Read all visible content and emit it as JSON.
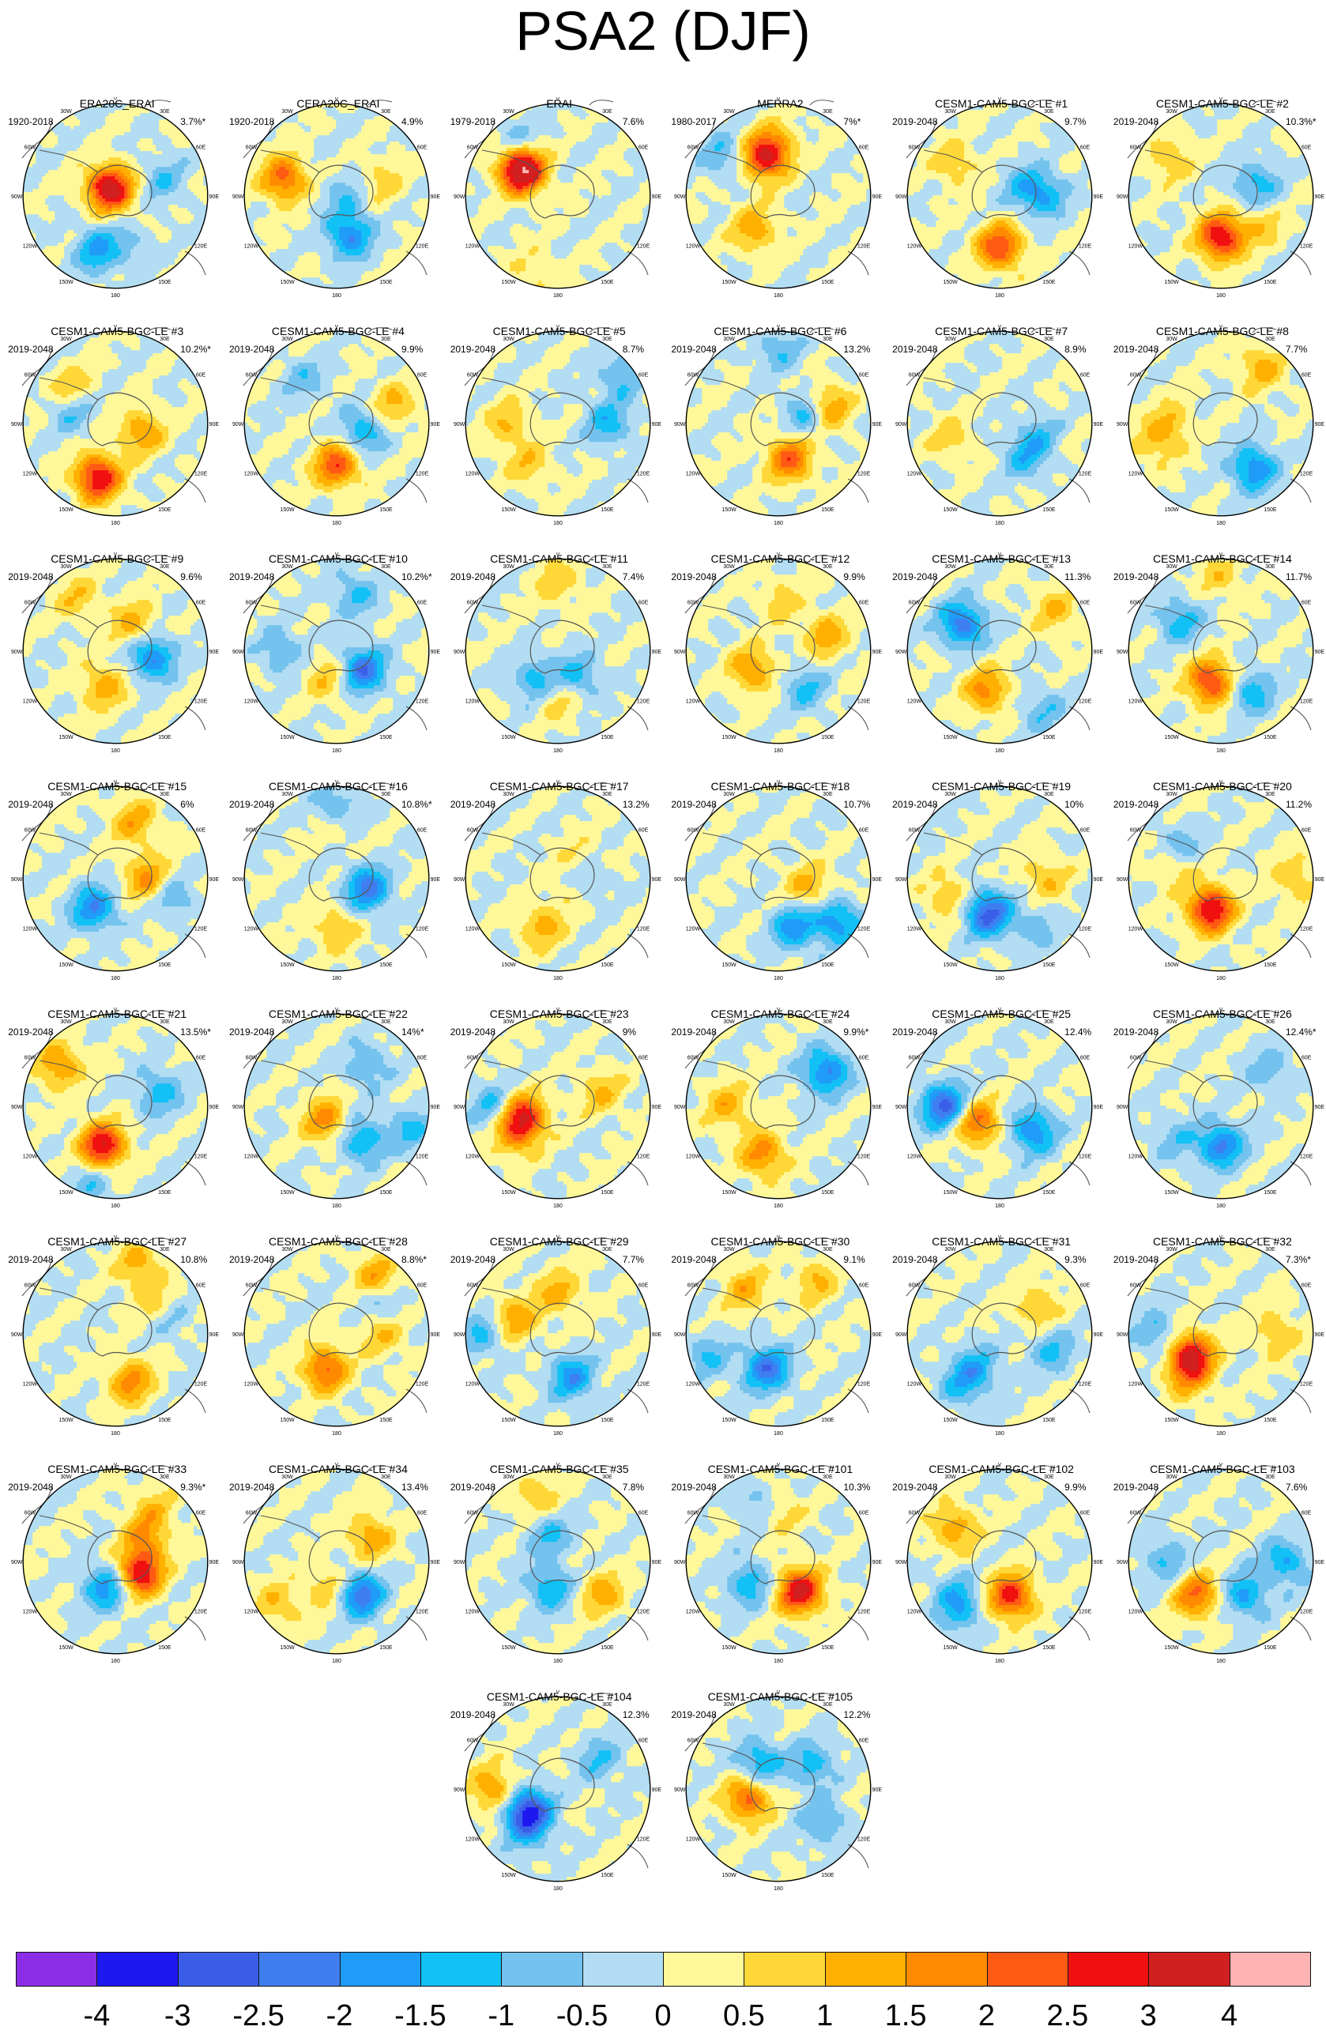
{
  "title": "PSA2 (DJF)",
  "map_labels": {
    "lon_0": "0",
    "lon_30w": "30W",
    "lon_30e": "30E",
    "lon_60w": "60W",
    "lon_60e": "60E",
    "lon_90w": "90W",
    "lon_90e": "90E",
    "lon_120w": "120W",
    "lon_120e": "120E",
    "lon_150w": "150W",
    "lon_150e": "150E",
    "lon_180": "180"
  },
  "panels": [
    {
      "name": "ERA20C_ERAI",
      "period": "1920-2018",
      "pct": "3.7%*",
      "pattern": [
        [
          -1.2,
          -0.1,
          3.5
        ],
        [
          0.9,
          0.55,
          -0.55
        ],
        [
          -0.9,
          0.62,
          -1.6
        ],
        [
          0.4,
          0.55,
          -0.9
        ]
      ]
    },
    {
      "name": "CERA20C_ERAI",
      "period": "1920-2018",
      "pct": "4.9%",
      "pattern": [
        [
          -1.5,
          0.1,
          -0.8
        ],
        [
          0.9,
          0.45,
          -2.0
        ],
        [
          1.6,
          0.6,
          2.2
        ],
        [
          0.4,
          0.5,
          0.8
        ]
      ]
    },
    {
      "name": "ERAI",
      "period": "1979-2018",
      "pct": "7.6%",
      "pattern": [
        [
          1.7,
          0.5,
          2.6
        ],
        [
          1.7,
          0.45,
          1.6
        ],
        [
          -0.2,
          0.75,
          -0.9
        ],
        [
          1.1,
          0.85,
          0.6
        ]
      ]
    },
    {
      "name": "MERRA2",
      "period": "1980-2017",
      "pct": "7%*",
      "pattern": [
        [
          1.9,
          0.45,
          3.0
        ],
        [
          1.2,
          0.45,
          1.4
        ],
        [
          -0.3,
          0.75,
          -1.0
        ],
        [
          0.0,
          0.6,
          0.6
        ]
      ]
    },
    {
      "name": "CESM1-CAM5-BGC-LE #1",
      "period": "2019-2048",
      "pct": "9.7%",
      "pattern": [
        [
          -1.0,
          0.55,
          2.5
        ],
        [
          -1.5,
          0.5,
          -1.2
        ],
        [
          2.4,
          0.3,
          -1.1
        ],
        [
          -0.3,
          0.6,
          0.9
        ]
      ]
    },
    {
      "name": "CESM1-CAM5-BGC-LE #2",
      "period": "2019-2048",
      "pct": "10.3%*",
      "pattern": [
        [
          -1.0,
          0.45,
          3.1
        ],
        [
          -1.6,
          0.4,
          -1.3
        ],
        [
          -0.3,
          0.7,
          1.0
        ],
        [
          0.7,
          0.55,
          0.8
        ]
      ]
    },
    {
      "name": "CESM1-CAM5-BGC-LE #3",
      "period": "2019-2048",
      "pct": "10.2%*",
      "pattern": [
        [
          -0.9,
          0.62,
          3.1
        ],
        [
          0.6,
          0.3,
          1.5
        ],
        [
          -0.4,
          0.5,
          -1.2
        ],
        [
          -2.3,
          0.6,
          1.2
        ]
      ]
    },
    {
      "name": "CESM1-CAM5-BGC-LE #4",
      "period": "2019-2048",
      "pct": "9.9%",
      "pattern": [
        [
          -1.0,
          0.45,
          2.4
        ],
        [
          -1.4,
          0.3,
          -1.5
        ],
        [
          0.4,
          0.65,
          1.1
        ],
        [
          -0.2,
          0.6,
          -0.8
        ]
      ]
    },
    {
      "name": "CESM1-CAM5-BGC-LE #5",
      "period": "2019-2048",
      "pct": "8.7%",
      "pattern": [
        [
          -0.5,
          0.55,
          1.0
        ],
        [
          -1.5,
          0.55,
          -1.3
        ],
        [
          1.2,
          0.55,
          0.9
        ],
        [
          0.3,
          0.85,
          -1.0
        ]
      ]
    },
    {
      "name": "CESM1-CAM5-BGC-LE #6",
      "period": "2019-2048",
      "pct": "13.2%",
      "pattern": [
        [
          -1.1,
          0.4,
          2.2
        ],
        [
          -1.6,
          0.35,
          -1.6
        ],
        [
          0.4,
          0.55,
          1.9
        ],
        [
          0.0,
          0.8,
          -0.9
        ]
      ]
    },
    {
      "name": "CESM1-CAM5-BGC-LE #7",
      "period": "2019-2048",
      "pct": "8.9%",
      "pattern": [
        [
          -1.2,
          0.45,
          -1.1
        ],
        [
          0.6,
          0.5,
          -1.4
        ],
        [
          1.4,
          0.55,
          0.8
        ],
        [
          2.6,
          0.6,
          0.6
        ]
      ]
    },
    {
      "name": "CESM1-CAM5-BGC-LE #8",
      "period": "2019-2048",
      "pct": "7.7%",
      "pattern": [
        [
          -1.2,
          0.6,
          -2.0
        ],
        [
          1.5,
          0.55,
          1.0
        ],
        [
          0.2,
          0.75,
          1.2
        ],
        [
          -0.6,
          0.75,
          0.8
        ]
      ]
    },
    {
      "name": "CESM1-CAM5-BGC-LE #9",
      "period": "2019-2048",
      "pct": "9.6%",
      "pattern": [
        [
          -1.45,
          0.4,
          -2.1
        ],
        [
          -0.9,
          0.4,
          1.3
        ],
        [
          0.2,
          0.35,
          1.3
        ],
        [
          -0.2,
          0.7,
          0.9
        ]
      ]
    },
    {
      "name": "CESM1-CAM5-BGC-LE #10",
      "period": "2019-2048",
      "pct": "10.2%*",
      "pattern": [
        [
          -1.3,
          0.35,
          -2.4
        ],
        [
          -0.9,
          0.3,
          1.0
        ],
        [
          0.1,
          0.65,
          -1.1
        ],
        [
          1.5,
          0.6,
          -1.0
        ]
      ]
    },
    {
      "name": "CESM1-CAM5-BGC-LE #11",
      "period": "2019-2048",
      "pct": "7.4%",
      "pattern": [
        [
          -1.0,
          0.5,
          1.0
        ],
        [
          -1.2,
          0.35,
          -1.3
        ],
        [
          1.2,
          0.4,
          -1.4
        ],
        [
          0.0,
          0.75,
          0.9
        ]
      ]
    },
    {
      "name": "CESM1-CAM5-BGC-LE #12",
      "period": "2019-2048",
      "pct": "9.9%",
      "pattern": [
        [
          -1.2,
          0.5,
          -1.1
        ],
        [
          -0.7,
          0.35,
          1.6
        ],
        [
          0.4,
          0.55,
          1.3
        ],
        [
          2.0,
          0.55,
          0.7
        ]
      ]
    },
    {
      "name": "CESM1-CAM5-BGC-LE #13",
      "period": "2019-2048",
      "pct": "11.3%",
      "pattern": [
        [
          -0.9,
          0.45,
          1.7
        ],
        [
          -0.3,
          0.5,
          -2.3
        ],
        [
          2.3,
          0.75,
          1.0
        ],
        [
          0.8,
          0.8,
          -0.9
        ]
      ]
    },
    {
      "name": "CESM1-CAM5-BGC-LE #14",
      "period": "2019-2048",
      "pct": "11.7%",
      "pattern": [
        [
          -0.9,
          0.35,
          2.7
        ],
        [
          -0.3,
          0.55,
          -1.3
        ],
        [
          0.8,
          0.55,
          -1.4
        ],
        [
          0.0,
          0.8,
          0.8
        ]
      ]
    },
    {
      "name": "CESM1-CAM5-BGC-LE #15",
      "period": "2019-2048",
      "pct": "6%",
      "pattern": [
        [
          -1.5,
          0.35,
          1.6
        ],
        [
          -0.8,
          0.4,
          -2.0
        ],
        [
          0.1,
          0.65,
          1.3
        ],
        [
          0.6,
          0.65,
          -1.0
        ]
      ]
    },
    {
      "name": "CESM1-CAM5-BGC-LE #16",
      "period": "2019-2048",
      "pct": "10.8%*",
      "pattern": [
        [
          -1.4,
          0.35,
          -2.2
        ],
        [
          0.0,
          0.75,
          -1.3
        ],
        [
          1.0,
          0.55,
          1.0
        ],
        [
          2.0,
          0.6,
          0.7
        ]
      ]
    },
    {
      "name": "CESM1-CAM5-BGC-LE #17",
      "period": "2019-2048",
      "pct": "13.2%",
      "pattern": [
        [
          -1.5,
          0.25,
          -2.3
        ],
        [
          0.6,
          0.2,
          1.6
        ],
        [
          -0.9,
          0.55,
          1.2
        ],
        [
          0.3,
          0.3,
          1.0
        ]
      ]
    },
    {
      "name": "CESM1-CAM5-BGC-LE #18",
      "period": "2019-2048",
      "pct": "10.7%",
      "pattern": [
        [
          -1.1,
          0.55,
          -1.8
        ],
        [
          -1.4,
          0.35,
          1.3
        ],
        [
          0.7,
          0.7,
          -1.0
        ],
        [
          2.7,
          0.85,
          -1.0
        ]
      ]
    },
    {
      "name": "CESM1-CAM5-BGC-LE #19",
      "period": "2019-2048",
      "pct": "10%",
      "pattern": [
        [
          -0.9,
          0.4,
          -2.7
        ],
        [
          -0.6,
          0.6,
          1.0
        ],
        [
          -1.5,
          0.5,
          1.0
        ],
        [
          0.8,
          0.65,
          -0.8
        ]
      ]
    },
    {
      "name": "CESM1-CAM5-BGC-LE #20",
      "period": "2019-2048",
      "pct": "11.2%",
      "pattern": [
        [
          -0.9,
          0.35,
          3.2
        ],
        [
          -0.3,
          0.55,
          -1.2
        ],
        [
          1.6,
          0.5,
          1.0
        ],
        [
          -1.5,
          0.8,
          1.0
        ]
      ]
    },
    {
      "name": "CESM1-CAM5-BGC-LE #21",
      "period": "2019-2048",
      "pct": "13.5%*",
      "pattern": [
        [
          -0.9,
          0.45,
          3.1
        ],
        [
          0.4,
          0.5,
          -1.3
        ],
        [
          1.7,
          0.75,
          1.6
        ],
        [
          -0.9,
          0.9,
          -0.9
        ]
      ]
    },
    {
      "name": "CESM1-CAM5-BGC-LE #22",
      "period": "2019-2048",
      "pct": "14%*",
      "pattern": [
        [
          -1.2,
          0.45,
          -1.6
        ],
        [
          -0.8,
          0.2,
          1.7
        ],
        [
          0.2,
          0.55,
          -1.0
        ],
        [
          2.6,
          0.85,
          -1.1
        ]
      ]
    },
    {
      "name": "CESM1-CAM5-BGC-LE #23",
      "period": "2019-2048",
      "pct": "9%",
      "pattern": [
        [
          -0.6,
          0.4,
          3.0
        ],
        [
          -0.5,
          0.7,
          -1.2
        ],
        [
          1.3,
          0.6,
          1.0
        ],
        [
          -1.6,
          0.5,
          1.0
        ]
      ]
    },
    {
      "name": "CESM1-CAM5-BGC-LE #24",
      "period": "2019-2048",
      "pct": "9.9%*",
      "pattern": [
        [
          -0.9,
          0.55,
          1.8
        ],
        [
          0.3,
          0.6,
          -1.2
        ],
        [
          1.5,
          0.55,
          1.2
        ],
        [
          -1.7,
          0.7,
          -1.0
        ]
      ]
    },
    {
      "name": "CESM1-CAM5-BGC-LE #25",
      "period": "2019-2048",
      "pct": "12.4%",
      "pattern": [
        [
          -0.7,
          0.3,
          2.2
        ],
        [
          -1.3,
          0.45,
          -2.0
        ],
        [
          -0.5,
          0.55,
          -1.5
        ],
        [
          1.5,
          0.65,
          -1.3
        ]
      ]
    },
    {
      "name": "CESM1-CAM5-BGC-LE #26",
      "period": "2019-2048",
      "pct": "12.4%*",
      "pattern": [
        [
          -1.0,
          0.45,
          -3.2
        ],
        [
          1.0,
          0.5,
          1.1
        ],
        [
          -2.7,
          0.6,
          -0.8
        ],
        [
          2.3,
          0.65,
          -0.9
        ]
      ]
    },
    {
      "name": "CESM1-CAM5-BGC-LE #27",
      "period": "2019-2048",
      "pct": "10.8%",
      "pattern": [
        [
          -1.1,
          0.55,
          1.7
        ],
        [
          -1.7,
          0.55,
          1.0
        ],
        [
          0.1,
          0.8,
          1.2
        ],
        [
          0.4,
          0.6,
          -0.8
        ]
      ]
    },
    {
      "name": "CESM1-CAM5-BGC-LE #28",
      "period": "2019-2048",
      "pct": "8.8%*",
      "pattern": [
        [
          -0.9,
          0.4,
          2.2
        ],
        [
          -1.5,
          0.5,
          1.0
        ],
        [
          0.2,
          0.75,
          1.5
        ],
        [
          0.3,
          0.6,
          -0.9
        ]
      ]
    },
    {
      "name": "CESM1-CAM5-BGC-LE #29",
      "period": "2019-2048",
      "pct": "7.7%",
      "pattern": [
        [
          -1.1,
          0.5,
          -1.8
        ],
        [
          -0.4,
          0.5,
          1.5
        ],
        [
          0.0,
          0.45,
          1.2
        ],
        [
          1.5,
          0.8,
          -1.2
        ]
      ]
    },
    {
      "name": "CESM1-CAM5-BGC-LE #30",
      "period": "2019-2048",
      "pct": "9.1%",
      "pattern": [
        [
          -0.9,
          0.4,
          -2.3
        ],
        [
          -0.2,
          0.6,
          1.2
        ],
        [
          0.2,
          0.7,
          1.0
        ],
        [
          1.4,
          0.8,
          -1.0
        ]
      ]
    },
    {
      "name": "CESM1-CAM5-BGC-LE #31",
      "period": "2019-2048",
      "pct": "9.3%",
      "pattern": [
        [
          -0.8,
          0.45,
          -1.3
        ],
        [
          0.3,
          0.5,
          1.0
        ],
        [
          -1.4,
          0.6,
          -1.1
        ],
        [
          1.2,
          0.7,
          -1.0
        ]
      ]
    },
    {
      "name": "CESM1-CAM5-BGC-LE #32",
      "period": "2019-2048",
      "pct": "7.3%*",
      "pattern": [
        [
          -0.7,
          0.4,
          3.1
        ],
        [
          -0.5,
          0.7,
          -1.1
        ],
        [
          1.2,
          0.6,
          1.1
        ],
        [
          -1.5,
          0.6,
          1.0
        ]
      ]
    },
    {
      "name": "CESM1-CAM5-BGC-LE #33",
      "period": "2019-2048",
      "pct": "9.3%*",
      "pattern": [
        [
          -1.35,
          0.3,
          3.0
        ],
        [
          -0.9,
          0.3,
          -1.9
        ],
        [
          -1.7,
          0.4,
          1.4
        ],
        [
          0.2,
          0.7,
          0.9
        ]
      ]
    },
    {
      "name": "CESM1-CAM5-BGC-LE #34",
      "period": "2019-2048",
      "pct": "13.4%",
      "pattern": [
        [
          -1.2,
          0.45,
          -2.4
        ],
        [
          -0.9,
          0.3,
          1.0
        ],
        [
          0.3,
          0.45,
          1.4
        ],
        [
          -0.7,
          0.8,
          1.0
        ]
      ]
    },
    {
      "name": "CESM1-CAM5-BGC-LE #35",
      "period": "2019-2048",
      "pct": "7.8%",
      "pattern": [
        [
          -0.9,
          0.3,
          -1.5
        ],
        [
          -0.1,
          0.3,
          -1.1
        ],
        [
          0.7,
          0.6,
          1.3
        ],
        [
          1.9,
          0.75,
          1.0
        ]
      ]
    },
    {
      "name": "CESM1-CAM5-BGC-LE #101",
      "period": "2019-2048",
      "pct": "10.3%",
      "pattern": [
        [
          -1.2,
          0.4,
          3.2
        ],
        [
          -0.7,
          0.4,
          -1.4
        ],
        [
          -0.1,
          0.65,
          -1.0
        ],
        [
          -2.0,
          0.55,
          1.0
        ]
      ]
    },
    {
      "name": "CESM1-CAM5-BGC-LE #102",
      "period": "2019-2048",
      "pct": "9.9%",
      "pattern": [
        [
          -1.1,
          0.4,
          2.8
        ],
        [
          -0.3,
          0.6,
          1.4
        ],
        [
          -0.8,
          0.7,
          -1.0
        ],
        [
          1.3,
          0.6,
          -1.0
        ]
      ]
    },
    {
      "name": "CESM1-CAM5-BGC-LE #103",
      "period": "2019-2048",
      "pct": "7.6%",
      "pattern": [
        [
          -0.8,
          0.45,
          2.1
        ],
        [
          -1.2,
          0.45,
          -1.6
        ],
        [
          0.5,
          0.7,
          -1.5
        ],
        [
          1.5,
          0.6,
          -1.1
        ]
      ]
    },
    {
      "name": "CESM1-CAM5-BGC-LE #104",
      "period": "2019-2048",
      "pct": "12.3%",
      "pattern": [
        [
          -0.7,
          0.4,
          -3.0
        ],
        [
          -0.5,
          0.7,
          1.6
        ],
        [
          1.2,
          0.55,
          -1.0
        ],
        [
          2.3,
          0.55,
          -1.0
        ]
      ]
    },
    {
      "name": "CESM1-CAM5-BGC-LE #105",
      "period": "2019-2048",
      "pct": "12.2%",
      "pattern": [
        [
          -0.6,
          0.35,
          2.2
        ],
        [
          -0.2,
          0.35,
          -1.6
        ],
        [
          0.3,
          0.45,
          -1.3
        ],
        [
          -1.3,
          0.6,
          -1.1
        ]
      ]
    }
  ],
  "colorbar": {
    "labels": [
      "-4",
      "-3",
      "-2.5",
      "-2",
      "-1.5",
      "-1",
      "-0.5",
      "0",
      "0.5",
      "1",
      "1.5",
      "2",
      "2.5",
      "3",
      "4"
    ],
    "colors": [
      "#8c2ee8",
      "#1e18f0",
      "#3b5ee8",
      "#3f7ef0",
      "#1f9cf8",
      "#12c1f5",
      "#74c2ee",
      "#b2ddf2",
      "#fff89a",
      "#ffd838",
      "#ffb000",
      "#ff8a00",
      "#ff5a14",
      "#f01010",
      "#d02020",
      "#ffb2b2"
    ]
  }
}
